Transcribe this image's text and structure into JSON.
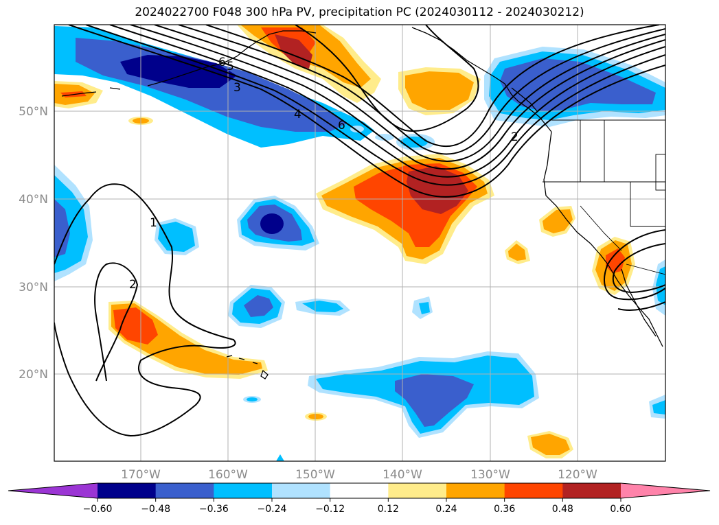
{
  "title": "2024022700 F048 300 hPa PV, precipitation PC (2024030112 - 2024030212)",
  "map": {
    "lon_labels": [
      "170°W",
      "160°W",
      "150°W",
      "140°W",
      "130°W",
      "120°W"
    ],
    "lat_labels": [
      "50°N",
      "40°N",
      "30°N",
      "20°N"
    ]
  },
  "pv_contour_labels": [
    "6",
    "5",
    "3",
    "4",
    "6",
    "2",
    "1",
    "2"
  ],
  "colorbar": {
    "tick_labels": [
      "−0.60",
      "−0.48",
      "−0.36",
      "−0.24",
      "−0.12",
      "0.12",
      "0.24",
      "0.36",
      "0.48",
      "0.60"
    ],
    "colors": [
      "#9b35d4",
      "#00008b",
      "#3a5fcd",
      "#00bfff",
      "#b0e2ff",
      "#ffffff",
      "#ffec8b",
      "#ffa500",
      "#ff4500",
      "#b22222",
      "#ff83aa"
    ]
  },
  "colors": {
    "land_coast": "#000000",
    "grid": "#b0b0b0",
    "pv_contours": "#000000"
  }
}
